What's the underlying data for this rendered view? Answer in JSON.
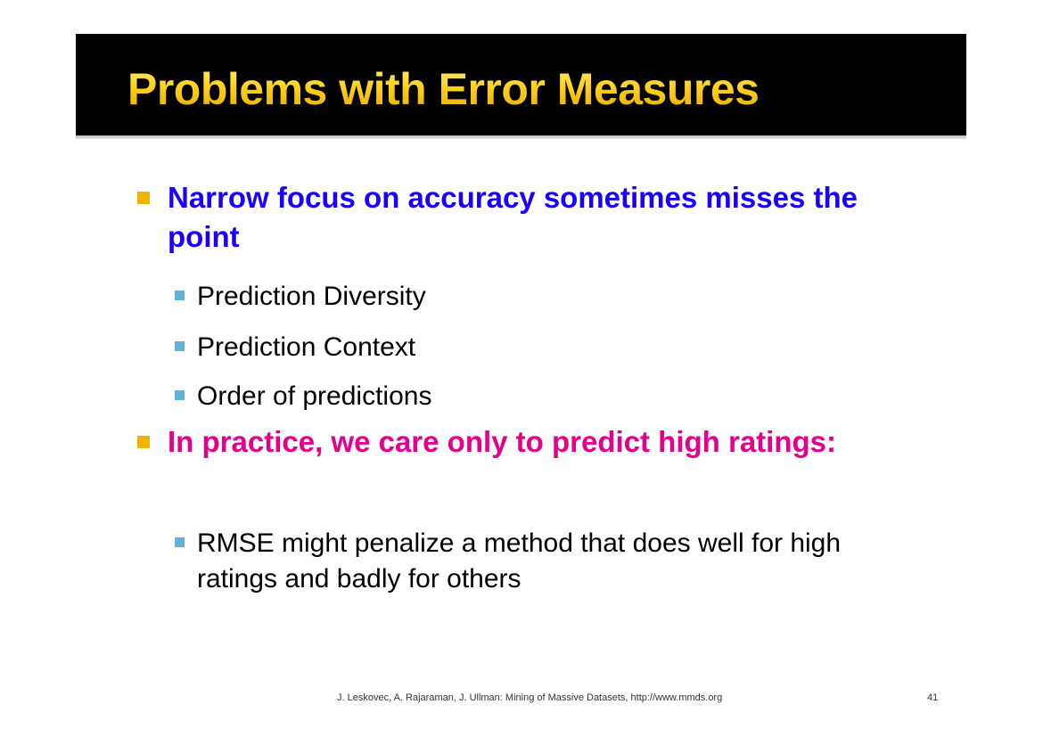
{
  "slide": {
    "title": "Problems with Error Measures",
    "bullets": [
      {
        "text": "Narrow focus on accuracy sometimes misses the point",
        "color": "#1a00ff",
        "sub": [
          "Prediction Diversity",
          "Prediction Context",
          "Order of predictions"
        ]
      },
      {
        "text": "In practice, we care only to predict high ratings:",
        "color": "#e4008c",
        "sub": [
          "RMSE might penalize a method that does well for high ratings and badly for others"
        ]
      }
    ],
    "footer": {
      "citation": "J. Leskovec, A. Rajaraman, J. Ullman: Mining of Massive Datasets, http://www.mmds.org",
      "page_number": "41"
    },
    "colors": {
      "title_bar": "#000000",
      "title_text": "#fbd21c",
      "level1_bullet": "#f0b400",
      "level2_bullet": "#5fb4d6"
    }
  }
}
